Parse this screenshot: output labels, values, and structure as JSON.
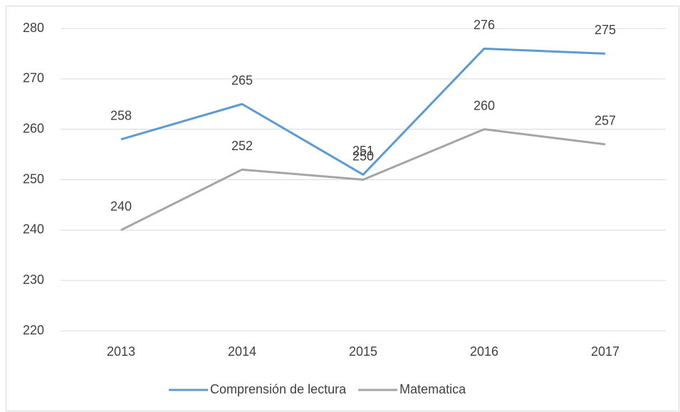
{
  "chart_data": {
    "type": "line",
    "categories": [
      "2013",
      "2014",
      "2015",
      "2016",
      "2017"
    ],
    "series": [
      {
        "name": "Comprensión de lectura",
        "color": "#5b9bd5",
        "values": [
          258,
          265,
          251,
          276,
          275
        ]
      },
      {
        "name": "Matematica",
        "color": "#a5a5a5",
        "values": [
          240,
          252,
          250,
          260,
          257
        ]
      }
    ],
    "ylim": [
      220,
      280
    ],
    "yticks": [
      220,
      230,
      240,
      250,
      260,
      270,
      280
    ],
    "grid": true,
    "legend": "bottom",
    "data_labels": true
  }
}
